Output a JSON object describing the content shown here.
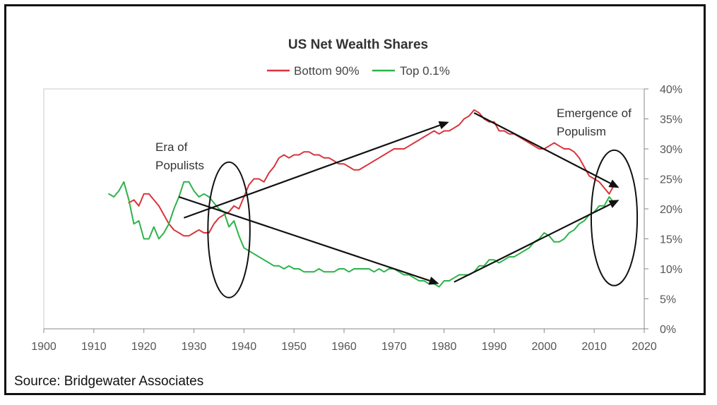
{
  "chart_data": {
    "type": "line",
    "title": "US Net Wealth Shares",
    "xlabel": "",
    "ylabel": "",
    "xlim": [
      1900,
      2020
    ],
    "ylim": [
      0,
      40
    ],
    "x_ticks": [
      "1900",
      "1910",
      "1920",
      "1930",
      "1940",
      "1950",
      "1960",
      "1970",
      "1980",
      "1990",
      "2000",
      "2010",
      "2020"
    ],
    "y_ticks": [
      "0%",
      "5%",
      "10%",
      "15%",
      "20%",
      "25%",
      "30%",
      "35%",
      "40%"
    ],
    "grid": false,
    "legend": "top-center",
    "series": [
      {
        "name": "Bottom 90%",
        "color": "#d9343a",
        "x": [
          1917,
          1918,
          1919,
          1920,
          1921,
          1922,
          1923,
          1924,
          1925,
          1926,
          1927,
          1928,
          1929,
          1930,
          1931,
          1932,
          1933,
          1934,
          1935,
          1936,
          1937,
          1938,
          1939,
          1940,
          1941,
          1942,
          1943,
          1944,
          1945,
          1946,
          1947,
          1948,
          1949,
          1950,
          1951,
          1952,
          1953,
          1954,
          1955,
          1956,
          1957,
          1958,
          1959,
          1960,
          1961,
          1962,
          1963,
          1964,
          1965,
          1966,
          1967,
          1968,
          1969,
          1970,
          1971,
          1972,
          1973,
          1974,
          1975,
          1976,
          1977,
          1978,
          1979,
          1980,
          1981,
          1982,
          1983,
          1984,
          1985,
          1986,
          1987,
          1988,
          1989,
          1990,
          1991,
          1992,
          1993,
          1994,
          1995,
          1996,
          1997,
          1998,
          1999,
          2000,
          2001,
          2002,
          2003,
          2004,
          2005,
          2006,
          2007,
          2008,
          2009,
          2010,
          2011,
          2012,
          2013,
          2014
        ],
        "values": [
          21.0,
          21.5,
          20.5,
          22.5,
          22.5,
          21.5,
          20.5,
          19.0,
          17.5,
          16.5,
          16.0,
          15.5,
          15.5,
          16.0,
          16.5,
          16.0,
          16.0,
          17.5,
          18.5,
          19.0,
          19.5,
          20.5,
          20.0,
          22.0,
          24.0,
          25.0,
          25.0,
          24.5,
          26.0,
          27.0,
          28.5,
          29.0,
          28.5,
          29.0,
          29.0,
          29.5,
          29.5,
          29.0,
          29.0,
          28.5,
          28.5,
          28.0,
          27.5,
          27.5,
          27.0,
          26.5,
          26.5,
          27.0,
          27.5,
          28.0,
          28.5,
          29.0,
          29.5,
          30.0,
          30.0,
          30.0,
          30.5,
          31.0,
          31.5,
          32.0,
          32.5,
          33.0,
          32.5,
          33.0,
          33.0,
          33.5,
          34.0,
          35.0,
          35.5,
          36.5,
          36.0,
          35.0,
          34.5,
          34.5,
          33.0,
          33.0,
          32.5,
          32.5,
          32.0,
          31.5,
          31.0,
          30.5,
          30.0,
          30.0,
          30.5,
          31.0,
          30.5,
          30.0,
          30.0,
          29.5,
          28.5,
          27.0,
          25.5,
          25.0,
          24.5,
          23.5,
          22.5,
          24.0
        ]
      },
      {
        "name": "Top 0.1%",
        "color": "#2db34a",
        "x": [
          1913,
          1914,
          1915,
          1916,
          1917,
          1918,
          1919,
          1920,
          1921,
          1922,
          1923,
          1924,
          1925,
          1926,
          1927,
          1928,
          1929,
          1930,
          1931,
          1932,
          1933,
          1934,
          1935,
          1936,
          1937,
          1938,
          1939,
          1940,
          1941,
          1942,
          1943,
          1944,
          1945,
          1946,
          1947,
          1948,
          1949,
          1950,
          1951,
          1952,
          1953,
          1954,
          1955,
          1956,
          1957,
          1958,
          1959,
          1960,
          1961,
          1962,
          1963,
          1964,
          1965,
          1966,
          1967,
          1968,
          1969,
          1970,
          1971,
          1972,
          1973,
          1974,
          1975,
          1976,
          1977,
          1978,
          1979,
          1980,
          1981,
          1982,
          1983,
          1984,
          1985,
          1986,
          1987,
          1988,
          1989,
          1990,
          1991,
          1992,
          1993,
          1994,
          1995,
          1996,
          1997,
          1998,
          1999,
          2000,
          2001,
          2002,
          2003,
          2004,
          2005,
          2006,
          2007,
          2008,
          2009,
          2010,
          2011,
          2012,
          2013,
          2014
        ],
        "values": [
          22.5,
          22.0,
          23.0,
          24.5,
          21.5,
          17.5,
          18.0,
          15.0,
          15.0,
          17.0,
          15.0,
          16.0,
          17.5,
          20.0,
          22.0,
          24.5,
          24.5,
          23.0,
          22.0,
          22.5,
          22.0,
          21.0,
          20.0,
          19.5,
          17.0,
          18.0,
          15.5,
          13.5,
          13.0,
          12.5,
          12.0,
          11.5,
          11.0,
          10.5,
          10.5,
          10.0,
          10.5,
          10.0,
          10.0,
          9.5,
          9.5,
          9.5,
          10.0,
          9.5,
          9.5,
          9.5,
          10.0,
          10.0,
          9.5,
          10.0,
          10.0,
          10.0,
          10.0,
          9.5,
          10.0,
          9.5,
          10.0,
          10.0,
          9.5,
          9.0,
          9.0,
          8.5,
          8.0,
          8.0,
          7.5,
          7.5,
          7.0,
          8.0,
          8.0,
          8.5,
          9.0,
          9.0,
          9.0,
          9.5,
          10.5,
          10.5,
          11.5,
          11.5,
          11.0,
          11.5,
          12.0,
          12.0,
          12.5,
          13.0,
          13.5,
          14.5,
          15.0,
          16.0,
          15.5,
          14.5,
          14.5,
          15.0,
          16.0,
          16.5,
          17.5,
          18.0,
          19.0,
          19.5,
          20.5,
          20.5,
          22.0,
          21.0
        ]
      }
    ],
    "annotations": [
      {
        "id": "era-of-populists",
        "lines": [
          "Era of",
          "Populists"
        ]
      },
      {
        "id": "emergence-of-populism",
        "lines": [
          "Emergence of",
          "Populism"
        ]
      }
    ],
    "trend_arrows": [
      {
        "name": "bottom90-rise",
        "from": [
          1928,
          18.5
        ],
        "to": [
          1981,
          34.5
        ]
      },
      {
        "name": "bottom90-fall",
        "from": [
          1986,
          36.0
        ],
        "to": [
          2015,
          23.5
        ]
      },
      {
        "name": "top01-fall",
        "from": [
          1927,
          22.0
        ],
        "to": [
          1979,
          7.5
        ]
      },
      {
        "name": "top01-rise",
        "from": [
          1982,
          7.8
        ],
        "to": [
          2015,
          21.5
        ]
      }
    ],
    "ellipses": [
      {
        "name": "populists-ellipse",
        "cx": 1937,
        "cy": 16.5,
        "rx": 4.2,
        "ry": 11.3
      },
      {
        "name": "populism-ellipse",
        "cx": 2014,
        "cy": 18.5,
        "rx": 4.6,
        "ry": 11.3
      }
    ]
  },
  "footer": {
    "source": "Source:  Bridgewater Associates"
  }
}
